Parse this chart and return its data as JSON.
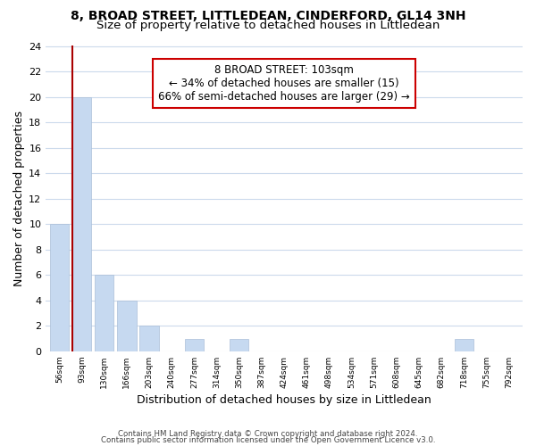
{
  "title": "8, BROAD STREET, LITTLEDEAN, CINDERFORD, GL14 3NH",
  "subtitle": "Size of property relative to detached houses in Littledean",
  "xlabel": "Distribution of detached houses by size in Littledean",
  "ylabel": "Number of detached properties",
  "bin_labels": [
    "56sqm",
    "93sqm",
    "130sqm",
    "166sqm",
    "203sqm",
    "240sqm",
    "277sqm",
    "314sqm",
    "350sqm",
    "387sqm",
    "424sqm",
    "461sqm",
    "498sqm",
    "534sqm",
    "571sqm",
    "608sqm",
    "645sqm",
    "682sqm",
    "718sqm",
    "755sqm",
    "792sqm"
  ],
  "bar_heights": [
    10,
    20,
    6,
    4,
    2,
    0,
    1,
    0,
    1,
    0,
    0,
    0,
    0,
    0,
    0,
    0,
    0,
    0,
    1,
    0,
    0
  ],
  "bar_color": "#c6d9f0",
  "bar_edge_color": "#aabfd8",
  "subject_line_color": "#aa0000",
  "annotation_line1": "8 BROAD STREET: 103sqm",
  "annotation_line2": "← 34% of detached houses are smaller (15)",
  "annotation_line3": "66% of semi-detached houses are larger (29) →",
  "annotation_box_color": "#ffffff",
  "annotation_box_edge": "#cc0000",
  "ylim": [
    0,
    24
  ],
  "yticks": [
    0,
    2,
    4,
    6,
    8,
    10,
    12,
    14,
    16,
    18,
    20,
    22,
    24
  ],
  "footer1": "Contains HM Land Registry data © Crown copyright and database right 2024.",
  "footer2": "Contains public sector information licensed under the Open Government Licence v3.0.",
  "bg_color": "#ffffff",
  "grid_color": "#ccdaec"
}
